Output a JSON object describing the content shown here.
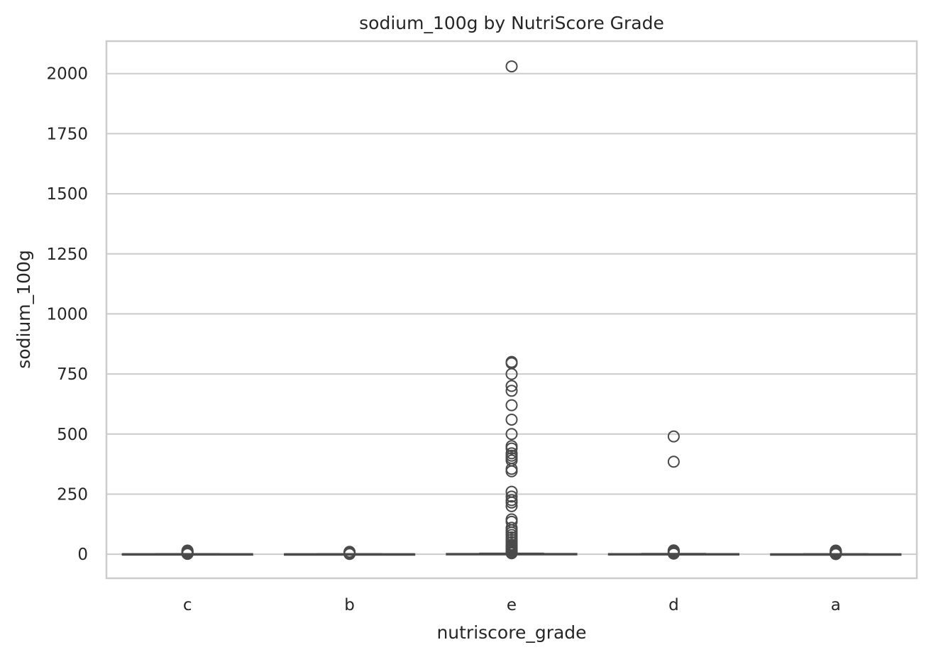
{
  "chart_data": {
    "type": "box",
    "title": "sodium_100g by NutriScore Grade",
    "xlabel": "nutriscore_grade",
    "ylabel": "sodium_100g",
    "categories": [
      "c",
      "b",
      "e",
      "d",
      "a"
    ],
    "ylim": [
      -100,
      2135
    ],
    "yticks": [
      0,
      250,
      500,
      750,
      1000,
      1250,
      1500,
      1750,
      2000
    ],
    "grid": true,
    "boxes": [
      {
        "category": "c",
        "q1": 0.2,
        "median": 0.4,
        "q3": 0.6,
        "whisker_low": 0,
        "whisker_high": 1.2,
        "outliers": [
          1.5,
          2,
          3,
          4,
          5,
          7,
          9,
          11,
          13,
          15
        ]
      },
      {
        "category": "b",
        "q1": 0.1,
        "median": 0.2,
        "q3": 0.4,
        "whisker_low": 0,
        "whisker_high": 0.8,
        "outliers": [
          1,
          2,
          3,
          4,
          5,
          6,
          8,
          10
        ]
      },
      {
        "category": "e",
        "q1": 0.6,
        "median": 1.0,
        "q3": 1.6,
        "whisker_low": 0,
        "whisker_high": 3.0,
        "outliers": [
          4,
          6,
          8,
          10,
          15,
          20,
          25,
          30,
          35,
          40,
          50,
          60,
          70,
          80,
          90,
          100,
          110,
          135,
          145,
          200,
          215,
          225,
          240,
          260,
          345,
          355,
          390,
          400,
          410,
          420,
          440,
          450,
          500,
          560,
          620,
          680,
          700,
          750,
          795,
          800,
          2030
        ]
      },
      {
        "category": "d",
        "q1": 0.4,
        "median": 0.7,
        "q3": 1.1,
        "whisker_low": 0,
        "whisker_high": 2.0,
        "outliers": [
          2.5,
          3,
          4,
          5,
          6,
          8,
          10,
          12,
          14,
          16,
          385,
          490
        ]
      },
      {
        "category": "a",
        "q1": 0.05,
        "median": 0.1,
        "q3": 0.2,
        "whisker_low": 0,
        "whisker_high": 0.4,
        "outliers": [
          0.6,
          1,
          2,
          3,
          4,
          5,
          7,
          9,
          11,
          13,
          15
        ]
      }
    ],
    "colors": {
      "box_edge": "#4a4a4a",
      "grid": "#cccccc",
      "frame": "#cccccc",
      "text": "#262626"
    }
  }
}
